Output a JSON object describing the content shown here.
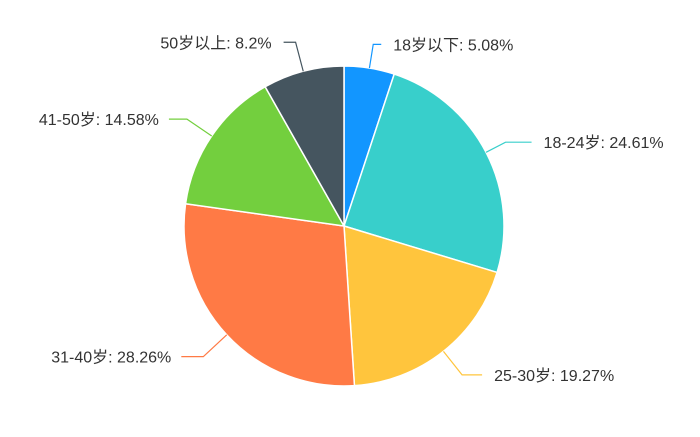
{
  "chart_data": {
    "type": "pie",
    "title": "",
    "categories": [
      "18岁以下",
      "18-24岁",
      "25-30岁",
      "31-40岁",
      "41-50岁",
      "50岁以上"
    ],
    "values": [
      5.08,
      24.61,
      19.27,
      28.26,
      14.58,
      8.2
    ],
    "labels": [
      "18岁以下: 5.08%",
      "18-24岁: 24.61%",
      "25-30岁: 19.27%",
      "31-40岁: 28.26%",
      "41-50岁: 14.58%",
      "50岁以上: 8.2%"
    ],
    "unit": "%",
    "colors": [
      "#1296ff",
      "#38cfcb",
      "#ffc53d",
      "#ff7a45",
      "#73cf3e",
      "#45555f"
    ],
    "start_angle_deg": 90,
    "direction": "clockwise",
    "legend": "none"
  }
}
